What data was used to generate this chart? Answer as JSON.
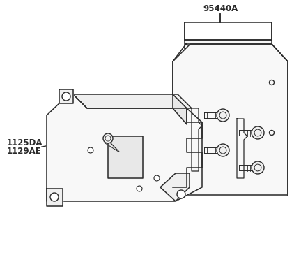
{
  "bg_color": "#ffffff",
  "line_color": "#2a2a2a",
  "label_95440A": "95440A",
  "label_1125DA": "1125DA",
  "label_1129AE": "1129AE",
  "fig_width": 4.32,
  "fig_height": 3.65,
  "dpi": 100
}
